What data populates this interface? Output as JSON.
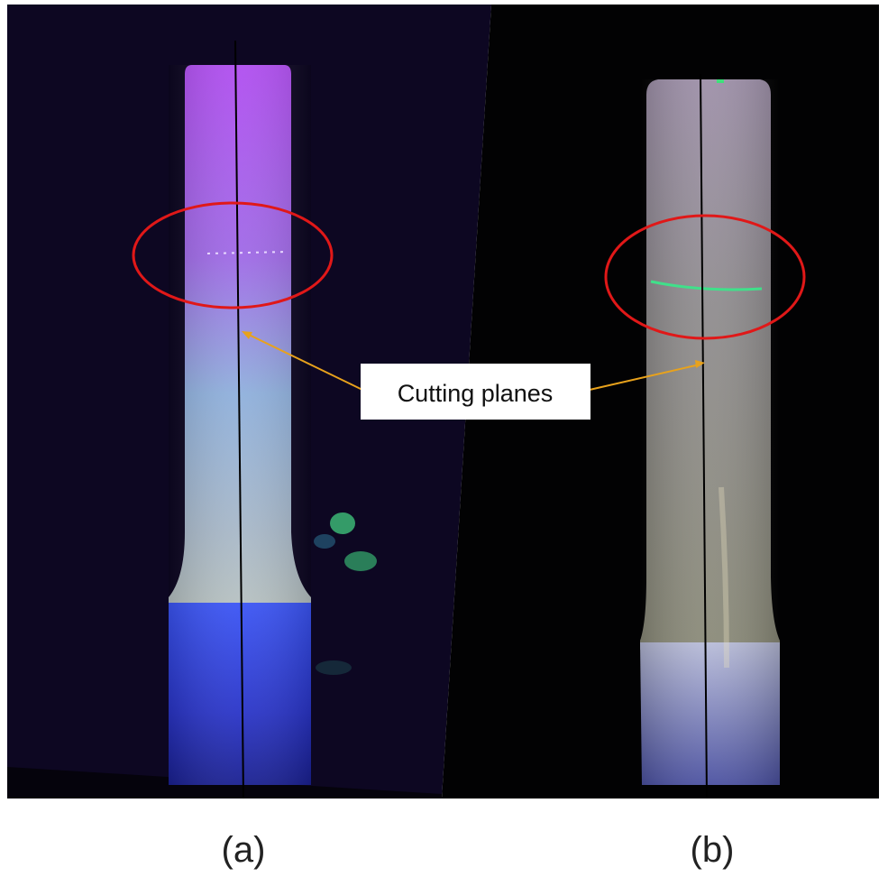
{
  "figure": {
    "callout": "Cutting planes",
    "panels": [
      {
        "label": "(a)"
      },
      {
        "label": "(b)"
      }
    ]
  }
}
